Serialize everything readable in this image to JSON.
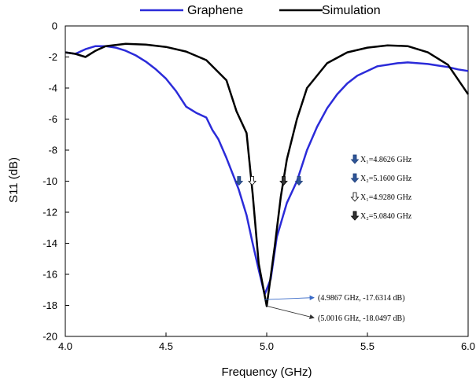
{
  "chart_data": {
    "type": "line",
    "xlabel": "Frequency (GHz)",
    "ylabel": "S11 (dB)",
    "xlim": [
      4.0,
      6.0
    ],
    "ylim": [
      -20,
      0
    ],
    "xticks": [
      "4.0",
      "4.5",
      "5.0",
      "5.5",
      "6.0"
    ],
    "yticks": [
      "0",
      "-2",
      "-4",
      "-6",
      "-8",
      "-10",
      "-12",
      "-14",
      "-16",
      "-18",
      "-20"
    ],
    "xtick_values": [
      4.0,
      4.5,
      5.0,
      5.5,
      6.0
    ],
    "ytick_values": [
      0,
      -2,
      -4,
      -6,
      -8,
      -10,
      -12,
      -14,
      -16,
      -18,
      -20
    ],
    "grid": false,
    "legend_position": "top",
    "series": [
      {
        "name": "Graphene",
        "color": "#2b2bd9",
        "x": [
          4.0,
          4.05,
          4.1,
          4.15,
          4.2,
          4.25,
          4.3,
          4.35,
          4.4,
          4.45,
          4.5,
          4.55,
          4.6,
          4.65,
          4.7,
          4.73,
          4.76,
          4.8,
          4.83,
          4.86,
          4.9,
          4.93,
          4.96,
          4.99,
          5.02,
          5.05,
          5.1,
          5.15,
          5.2,
          5.25,
          5.3,
          5.35,
          5.4,
          5.45,
          5.5,
          5.55,
          5.6,
          5.65,
          5.7,
          5.75,
          5.8,
          5.85,
          5.9,
          5.95,
          6.0
        ],
        "y": [
          -1.7,
          -1.8,
          -1.5,
          -1.3,
          -1.3,
          -1.4,
          -1.6,
          -1.9,
          -2.3,
          -2.8,
          -3.4,
          -4.2,
          -5.2,
          -5.6,
          -5.9,
          -6.7,
          -7.3,
          -8.5,
          -9.5,
          -10.5,
          -12.2,
          -14.0,
          -15.7,
          -17.3,
          -16.3,
          -13.6,
          -11.4,
          -10.0,
          -8.0,
          -6.5,
          -5.3,
          -4.4,
          -3.7,
          -3.2,
          -2.9,
          -2.6,
          -2.5,
          -2.4,
          -2.35,
          -2.4,
          -2.45,
          -2.55,
          -2.65,
          -2.8,
          -2.9
        ]
      },
      {
        "name": "Simulation",
        "color": "#000000",
        "x": [
          4.0,
          4.05,
          4.1,
          4.15,
          4.2,
          4.3,
          4.4,
          4.5,
          4.6,
          4.7,
          4.8,
          4.85,
          4.9,
          4.93,
          4.96,
          5.0,
          5.04,
          5.07,
          5.1,
          5.15,
          5.2,
          5.3,
          5.4,
          5.5,
          5.6,
          5.7,
          5.8,
          5.9,
          6.0
        ],
        "y": [
          -1.7,
          -1.8,
          -2.0,
          -1.6,
          -1.3,
          -1.15,
          -1.2,
          -1.35,
          -1.65,
          -2.2,
          -3.5,
          -5.5,
          -6.9,
          -10.8,
          -15.3,
          -18.05,
          -14.2,
          -11.0,
          -8.6,
          -6.0,
          -4.0,
          -2.4,
          -1.7,
          -1.4,
          -1.25,
          -1.3,
          -1.7,
          -2.5,
          -4.4
        ]
      }
    ],
    "markers": [
      {
        "label": "X₁=4.8626 GHz",
        "x": 4.8626,
        "y": -10,
        "style": "filled-blue"
      },
      {
        "label": "X₂=5.1600 GHz",
        "x": 5.16,
        "y": -10,
        "style": "filled-blue"
      },
      {
        "label": "X₁=4.9280 GHz",
        "x": 4.928,
        "y": -10,
        "style": "outline"
      },
      {
        "label": "X₂=5.0840 GHz",
        "x": 5.084,
        "y": -10,
        "style": "filled-black"
      }
    ],
    "annotations": [
      {
        "text": "(4.9867 GHz, -17.6314 dB)",
        "x": 4.9867,
        "y": -17.6314,
        "color": "#3a6bc8",
        "text_y": -17.5
      },
      {
        "text": "(5.0016 GHz, -18.0497 dB)",
        "x": 5.0016,
        "y": -18.0497,
        "color": "#333333",
        "text_y": -18.8
      }
    ]
  }
}
